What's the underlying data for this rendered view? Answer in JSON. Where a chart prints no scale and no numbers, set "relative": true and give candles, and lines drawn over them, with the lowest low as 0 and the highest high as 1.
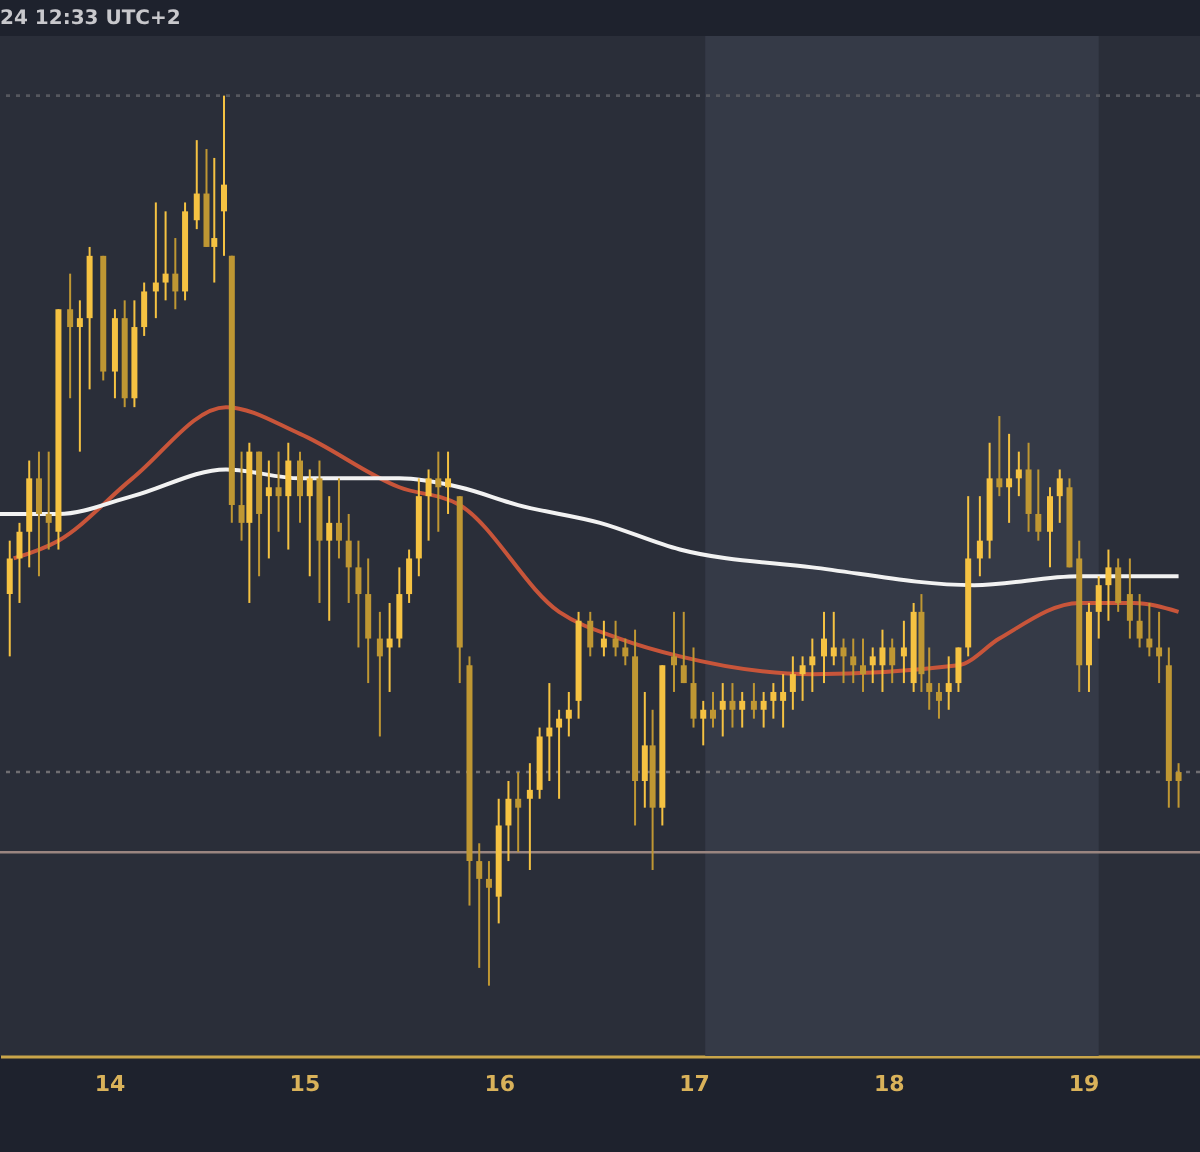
{
  "chart_data": {
    "type": "candlestick",
    "relative": true,
    "tick_labels": "x",
    "colors": [
      "#f5c242",
      "#f5c242",
      "#f5c242",
      "#bf9733",
      "#bf9733",
      "#f5c242",
      "#bf9733",
      "#f5c242",
      "#f5c242",
      "#bf9733",
      "#f5c242",
      "#bf9733",
      "#f5c242",
      "#f5c242",
      "#f5c242",
      "#f5c242",
      "#bf9733",
      "#f5c242",
      "#f5c242",
      "#bf9733",
      "#f5c242",
      "#f5c242",
      "#bf9733",
      "#bf9733",
      "#f5c242",
      "#bf9733",
      "#f5c242",
      "#bf9733",
      "#f5c242",
      "#bf9733",
      "#f5c242",
      "#bf9733",
      "#f5c242",
      "#bf9733",
      "#bf9733",
      "#bf9733",
      "#bf9733",
      "#bf9733",
      "#f5c242",
      "#f5c242",
      "#f5c242",
      "#f5c242",
      "#f5c242",
      "#bf9733",
      "#f5c242",
      "#bf9733",
      "#bf9733",
      "#bf9733",
      "#bf9733",
      "#f5c242",
      "#f5c242",
      "#bf9733",
      "#f5c242",
      "#f5c242",
      "#f5c242",
      "#f5c242",
      "#f5c242",
      "#f5c242",
      "#bf9733",
      "#f5c242",
      "#bf9733",
      "#bf9733",
      "#bf9733",
      "#f5c242",
      "#bf9733",
      "#f5c242",
      "#bf9733",
      "#bf9733",
      "#bf9733",
      "#f5c242",
      "#bf9733",
      "#f5c242",
      "#bf9733",
      "#f5c242",
      "#bf9733",
      "#f5c242",
      "#f5c242",
      "#f5c242",
      "#f5c242",
      "#f5c242",
      "#f5c242",
      "#f5c242",
      "#f5c242",
      "#bf9733",
      "#bf9733",
      "#bf9733",
      "#f5c242",
      "#f5c242",
      "#bf9733",
      "#f5c242",
      "#f5c242",
      "#bf9733",
      "#bf9733",
      "#bf9733",
      "#f5c242",
      "#f5c242",
      "#f5c242",
      "#f5c242",
      "#f5c242",
      "#bf9733",
      "#f5c242",
      "#f5c242",
      "#bf9733",
      "#bf9733",
      "#f5c242",
      "#f5c242",
      "#bf9733",
      "#bf9733",
      "#f5c242",
      "#f5c242",
      "#f5c242",
      "#bf9733",
      "#bf9733",
      "#bf9733",
      "#bf9733",
      "#bf9733",
      "#bf9733",
      "#bf9733"
    ],
    "annotations": [
      "24 12:33 UTC+2"
    ],
    "xlim": [
      13.44,
      19.6
    ],
    "xticks": [
      14,
      15,
      16,
      17,
      18,
      19
    ],
    "bands": [
      {
        "axis": "x",
        "from": 17.06,
        "to": 19.08,
        "color": "#353a47"
      }
    ],
    "ref_lines": [
      {
        "axis": "y",
        "value": 0.15,
        "color": "#9a8580",
        "line_style": "solid"
      },
      {
        "axis": "y",
        "value": 0.24,
        "color": "#6f6e72",
        "line_style": "dotted"
      },
      {
        "axis": "y",
        "value": 1.0,
        "color": "#55575e",
        "line_style": "dotted"
      }
    ],
    "x": [
      13.49,
      13.54,
      13.59,
      13.64,
      13.69,
      13.74,
      13.8,
      13.85,
      13.9,
      13.97,
      14.03,
      14.08,
      14.13,
      14.18,
      14.24,
      14.29,
      14.34,
      14.39,
      14.45,
      14.5,
      14.54,
      14.59,
      14.63,
      14.68,
      14.72,
      14.77,
      14.82,
      14.87,
      14.92,
      14.98,
      15.03,
      15.08,
      15.13,
      15.18,
      15.23,
      15.28,
      15.33,
      15.39,
      15.44,
      15.49,
      15.54,
      15.59,
      15.64,
      15.69,
      15.74,
      15.8,
      15.85,
      15.9,
      15.95,
      16.0,
      16.05,
      16.1,
      16.16,
      16.21,
      16.26,
      16.31,
      16.36,
      16.41,
      16.47,
      16.54,
      16.6,
      16.65,
      16.7,
      16.75,
      16.79,
      16.84,
      16.9,
      16.95,
      17.0,
      17.05,
      17.1,
      17.15,
      17.2,
      17.25,
      17.31,
      17.36,
      17.41,
      17.46,
      17.51,
      17.56,
      17.61,
      17.67,
      17.72,
      17.77,
      17.82,
      17.87,
      17.92,
      17.97,
      18.02,
      18.08,
      18.13,
      18.17,
      18.21,
      18.26,
      18.31,
      18.36,
      18.41,
      18.47,
      18.52,
      18.57,
      18.62,
      18.67,
      18.72,
      18.77,
      18.83,
      18.88,
      18.93,
      18.98,
      19.03,
      19.08,
      19.13,
      19.18,
      19.24,
      19.29,
      19.34,
      19.39,
      19.44,
      19.49
    ],
    "ohlc": [
      [
        0.44,
        0.5,
        0.37,
        0.48
      ],
      [
        0.48,
        0.52,
        0.43,
        0.51
      ],
      [
        0.51,
        0.59,
        0.47,
        0.57
      ],
      [
        0.57,
        0.6,
        0.46,
        0.53
      ],
      [
        0.53,
        0.6,
        0.49,
        0.52
      ],
      [
        0.51,
        0.76,
        0.49,
        0.76
      ],
      [
        0.76,
        0.8,
        0.66,
        0.74
      ],
      [
        0.74,
        0.77,
        0.6,
        0.75
      ],
      [
        0.75,
        0.83,
        0.67,
        0.82
      ],
      [
        0.82,
        0.82,
        0.68,
        0.69
      ],
      [
        0.69,
        0.76,
        0.66,
        0.75
      ],
      [
        0.75,
        0.77,
        0.65,
        0.66
      ],
      [
        0.66,
        0.77,
        0.65,
        0.74
      ],
      [
        0.74,
        0.79,
        0.73,
        0.78
      ],
      [
        0.78,
        0.88,
        0.75,
        0.79
      ],
      [
        0.79,
        0.87,
        0.77,
        0.8
      ],
      [
        0.8,
        0.84,
        0.76,
        0.78
      ],
      [
        0.78,
        0.88,
        0.77,
        0.87
      ],
      [
        0.86,
        0.95,
        0.85,
        0.89
      ],
      [
        0.89,
        0.94,
        0.83,
        0.83
      ],
      [
        0.83,
        0.93,
        0.79,
        0.84
      ],
      [
        0.87,
        1.0,
        0.82,
        0.9
      ],
      [
        0.82,
        0.82,
        0.52,
        0.54
      ],
      [
        0.54,
        0.6,
        0.5,
        0.52
      ],
      [
        0.52,
        0.61,
        0.43,
        0.6
      ],
      [
        0.6,
        0.6,
        0.46,
        0.53
      ],
      [
        0.55,
        0.59,
        0.48,
        0.56
      ],
      [
        0.56,
        0.6,
        0.51,
        0.55
      ],
      [
        0.55,
        0.61,
        0.49,
        0.59
      ],
      [
        0.59,
        0.6,
        0.52,
        0.55
      ],
      [
        0.55,
        0.58,
        0.46,
        0.57
      ],
      [
        0.57,
        0.59,
        0.43,
        0.5
      ],
      [
        0.5,
        0.55,
        0.41,
        0.52
      ],
      [
        0.52,
        0.57,
        0.48,
        0.5
      ],
      [
        0.5,
        0.53,
        0.43,
        0.47
      ],
      [
        0.47,
        0.5,
        0.38,
        0.44
      ],
      [
        0.44,
        0.48,
        0.34,
        0.39
      ],
      [
        0.39,
        0.42,
        0.28,
        0.37
      ],
      [
        0.38,
        0.43,
        0.33,
        0.39
      ],
      [
        0.39,
        0.47,
        0.38,
        0.44
      ],
      [
        0.44,
        0.49,
        0.43,
        0.48
      ],
      [
        0.48,
        0.57,
        0.46,
        0.55
      ],
      [
        0.55,
        0.58,
        0.5,
        0.57
      ],
      [
        0.57,
        0.6,
        0.51,
        0.56
      ],
      [
        0.56,
        0.6,
        0.53,
        0.57
      ],
      [
        0.55,
        0.55,
        0.34,
        0.38
      ],
      [
        0.36,
        0.37,
        0.09,
        0.14
      ],
      [
        0.14,
        0.16,
        0.02,
        0.12
      ],
      [
        0.12,
        0.14,
        0,
        0.11
      ],
      [
        0.1,
        0.21,
        0.07,
        0.18
      ],
      [
        0.18,
        0.23,
        0.14,
        0.21
      ],
      [
        0.21,
        0.24,
        0.15,
        0.2
      ],
      [
        0.21,
        0.25,
        0.13,
        0.22
      ],
      [
        0.22,
        0.29,
        0.21,
        0.28
      ],
      [
        0.28,
        0.34,
        0.23,
        0.29
      ],
      [
        0.29,
        0.31,
        0.21,
        0.3
      ],
      [
        0.3,
        0.33,
        0.28,
        0.31
      ],
      [
        0.32,
        0.42,
        0.3,
        0.41
      ],
      [
        0.41,
        0.42,
        0.37,
        0.38
      ],
      [
        0.38,
        0.41,
        0.37,
        0.39
      ],
      [
        0.39,
        0.41,
        0.37,
        0.38
      ],
      [
        0.38,
        0.39,
        0.36,
        0.37
      ],
      [
        0.37,
        0.4,
        0.18,
        0.23
      ],
      [
        0.23,
        0.33,
        0.2,
        0.27
      ],
      [
        0.27,
        0.31,
        0.13,
        0.2
      ],
      [
        0.2,
        0.36,
        0.18,
        0.36
      ],
      [
        0.37,
        0.42,
        0.33,
        0.36
      ],
      [
        0.36,
        0.42,
        0.34,
        0.34
      ],
      [
        0.34,
        0.38,
        0.29,
        0.3
      ],
      [
        0.3,
        0.32,
        0.27,
        0.31
      ],
      [
        0.31,
        0.33,
        0.29,
        0.3
      ],
      [
        0.31,
        0.34,
        0.28,
        0.32
      ],
      [
        0.32,
        0.34,
        0.29,
        0.31
      ],
      [
        0.31,
        0.33,
        0.29,
        0.32
      ],
      [
        0.32,
        0.34,
        0.3,
        0.31
      ],
      [
        0.31,
        0.33,
        0.29,
        0.32
      ],
      [
        0.32,
        0.34,
        0.3,
        0.33
      ],
      [
        0.32,
        0.35,
        0.29,
        0.33
      ],
      [
        0.33,
        0.37,
        0.31,
        0.35
      ],
      [
        0.35,
        0.37,
        0.32,
        0.36
      ],
      [
        0.36,
        0.39,
        0.33,
        0.37
      ],
      [
        0.37,
        0.42,
        0.34,
        0.39
      ],
      [
        0.37,
        0.42,
        0.36,
        0.38
      ],
      [
        0.38,
        0.39,
        0.34,
        0.37
      ],
      [
        0.37,
        0.39,
        0.34,
        0.36
      ],
      [
        0.36,
        0.39,
        0.33,
        0.35
      ],
      [
        0.36,
        0.38,
        0.34,
        0.37
      ],
      [
        0.36,
        0.4,
        0.33,
        0.38
      ],
      [
        0.38,
        0.39,
        0.34,
        0.36
      ],
      [
        0.37,
        0.41,
        0.34,
        0.38
      ],
      [
        0.34,
        0.43,
        0.33,
        0.42
      ],
      [
        0.42,
        0.44,
        0.33,
        0.35
      ],
      [
        0.34,
        0.38,
        0.31,
        0.33
      ],
      [
        0.33,
        0.34,
        0.3,
        0.32
      ],
      [
        0.33,
        0.37,
        0.31,
        0.34
      ],
      [
        0.34,
        0.38,
        0.33,
        0.38
      ],
      [
        0.38,
        0.55,
        0.37,
        0.48
      ],
      [
        0.48,
        0.55,
        0.46,
        0.5
      ],
      [
        0.5,
        0.61,
        0.48,
        0.57
      ],
      [
        0.57,
        0.64,
        0.55,
        0.56
      ],
      [
        0.56,
        0.62,
        0.52,
        0.57
      ],
      [
        0.57,
        0.6,
        0.55,
        0.58
      ],
      [
        0.58,
        0.61,
        0.51,
        0.53
      ],
      [
        0.53,
        0.58,
        0.5,
        0.51
      ],
      [
        0.51,
        0.56,
        0.47,
        0.55
      ],
      [
        0.55,
        0.58,
        0.52,
        0.57
      ],
      [
        0.56,
        0.57,
        0.47,
        0.47
      ],
      [
        0.48,
        0.5,
        0.33,
        0.36
      ],
      [
        0.36,
        0.43,
        0.33,
        0.42
      ],
      [
        0.42,
        0.46,
        0.39,
        0.45
      ],
      [
        0.45,
        0.49,
        0.41,
        0.47
      ],
      [
        0.47,
        0.48,
        0.42,
        0.43
      ],
      [
        0.44,
        0.48,
        0.39,
        0.41
      ],
      [
        0.41,
        0.44,
        0.38,
        0.39
      ],
      [
        0.39,
        0.43,
        0.37,
        0.38
      ],
      [
        0.38,
        0.42,
        0.34,
        0.37
      ],
      [
        0.36,
        0.38,
        0.2,
        0.23
      ],
      [
        0.24,
        0.25,
        0.2,
        0.23
      ]
    ],
    "series": [
      {
        "type": "line",
        "color": "#c8553a",
        "x": [
          13.51,
          13.74,
          14.12,
          14.6,
          14.98,
          15.49,
          15.8,
          16.31,
          16.62,
          16.93,
          17.61,
          18.36,
          18.57,
          18.98,
          19.26,
          19.49
        ],
        "values": [
          0.48,
          0.5,
          0.57,
          0.65,
          0.62,
          0.56,
          0.54,
          0.42,
          0.39,
          0.37,
          0.35,
          0.36,
          0.39,
          0.43,
          0.43,
          0.42
        ]
      },
      {
        "type": "line",
        "color": "#f2f2f2",
        "x": [
          13.44,
          13.74,
          14.12,
          14.6,
          14.98,
          15.49,
          15.8,
          16.1,
          16.52,
          16.93,
          17.61,
          18.44,
          18.98,
          19.49
        ],
        "values": [
          0.53,
          0.53,
          0.55,
          0.58,
          0.57,
          0.57,
          0.56,
          0.54,
          0.52,
          0.49,
          0.47,
          0.45,
          0.46,
          0.46
        ]
      }
    ]
  }
}
